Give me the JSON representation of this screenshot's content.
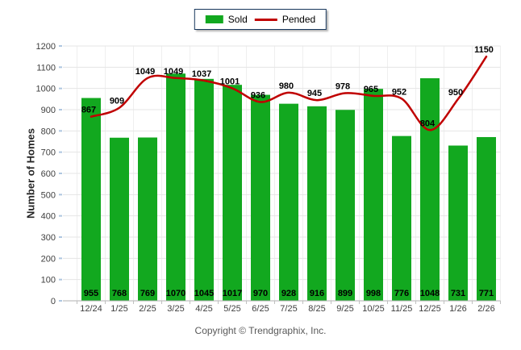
{
  "legend": {
    "items": [
      {
        "label": "Sold",
        "swatch": "green-rect"
      },
      {
        "label": "Pended",
        "swatch": "red-line"
      }
    ]
  },
  "chart_data": {
    "type": "bar",
    "title": "",
    "xlabel": "",
    "ylabel": "Number of Homes",
    "ylim": [
      0,
      1200
    ],
    "ytick_step": 100,
    "grid": true,
    "legend_position": "top-center",
    "categories": [
      "12/24",
      "1/25",
      "2/25",
      "3/25",
      "4/25",
      "5/25",
      "6/25",
      "7/25",
      "8/25",
      "9/25",
      "10/25",
      "11/25",
      "12/25",
      "1/26",
      "2/26"
    ],
    "series": [
      {
        "name": "Sold",
        "type": "bar",
        "color": "#12a81f",
        "values": [
          955,
          768,
          769,
          1070,
          1045,
          1017,
          970,
          928,
          916,
          899,
          998,
          776,
          1048,
          731,
          771
        ]
      },
      {
        "name": "Pended",
        "type": "line",
        "color": "#c00000",
        "values": [
          867,
          909,
          1049,
          1049,
          1037,
          1001,
          936,
          980,
          945,
          978,
          965,
          952,
          804,
          950,
          1150
        ]
      }
    ],
    "colors": {
      "bar_label": "#000000",
      "line_label": "#000000",
      "axis_line": "#b0b0b0",
      "h_gridline": "#e4e4e4",
      "v_gridline": "#efefef",
      "y_tick": "#aec6e0",
      "x_tick": "#c0c0c0",
      "tick_label": "#404040"
    }
  },
  "footer": {
    "copyright": "Copyright © Trendgraphix, Inc."
  }
}
